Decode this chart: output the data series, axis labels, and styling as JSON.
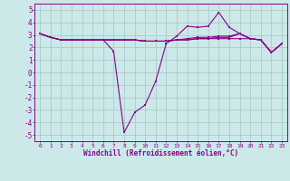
{
  "xlabel": "Windchill (Refroidissement éolien,°C)",
  "background_color": "#cce8e8",
  "grid_color": "#aacccc",
  "line_color": "#880088",
  "xlim": [
    -0.5,
    23.5
  ],
  "ylim": [
    -5.5,
    5.5
  ],
  "yticks": [
    -5,
    -4,
    -3,
    -2,
    -1,
    0,
    1,
    2,
    3,
    4,
    5
  ],
  "xticks": [
    0,
    1,
    2,
    3,
    4,
    5,
    6,
    7,
    8,
    9,
    10,
    11,
    12,
    13,
    14,
    15,
    16,
    17,
    18,
    19,
    20,
    21,
    22,
    23
  ],
  "series1": [
    [
      0,
      3.1
    ],
    [
      1,
      2.8
    ],
    [
      2,
      2.6
    ],
    [
      3,
      2.6
    ],
    [
      4,
      2.6
    ],
    [
      5,
      2.6
    ],
    [
      6,
      2.6
    ],
    [
      7,
      1.7
    ],
    [
      8,
      -4.8
    ],
    [
      9,
      -3.2
    ],
    [
      10,
      -2.6
    ],
    [
      11,
      -0.7
    ],
    [
      12,
      2.3
    ],
    [
      13,
      2.9
    ],
    [
      14,
      3.7
    ],
    [
      15,
      3.6
    ],
    [
      16,
      3.7
    ],
    [
      17,
      4.8
    ],
    [
      18,
      3.6
    ],
    [
      19,
      3.1
    ],
    [
      20,
      2.7
    ],
    [
      21,
      2.6
    ],
    [
      22,
      1.6
    ],
    [
      23,
      2.3
    ]
  ],
  "series2": [
    [
      0,
      3.1
    ],
    [
      1,
      2.8
    ],
    [
      2,
      2.6
    ],
    [
      3,
      2.6
    ],
    [
      4,
      2.6
    ],
    [
      5,
      2.6
    ],
    [
      6,
      2.6
    ],
    [
      7,
      2.6
    ],
    [
      8,
      2.6
    ],
    [
      9,
      2.6
    ],
    [
      10,
      2.5
    ],
    [
      11,
      2.5
    ],
    [
      12,
      2.5
    ],
    [
      13,
      2.6
    ],
    [
      14,
      2.6
    ],
    [
      15,
      2.7
    ],
    [
      16,
      2.7
    ],
    [
      17,
      2.7
    ],
    [
      18,
      2.7
    ],
    [
      19,
      2.7
    ],
    [
      20,
      2.7
    ],
    [
      21,
      2.6
    ],
    [
      22,
      1.6
    ],
    [
      23,
      2.3
    ]
  ],
  "series3": [
    [
      0,
      3.1
    ],
    [
      1,
      2.8
    ],
    [
      2,
      2.6
    ],
    [
      3,
      2.6
    ],
    [
      4,
      2.6
    ],
    [
      5,
      2.6
    ],
    [
      6,
      2.6
    ],
    [
      7,
      2.6
    ],
    [
      8,
      2.6
    ],
    [
      9,
      2.6
    ],
    [
      10,
      2.5
    ],
    [
      11,
      2.5
    ],
    [
      12,
      2.5
    ],
    [
      13,
      2.6
    ],
    [
      14,
      2.6
    ],
    [
      15,
      2.7
    ],
    [
      16,
      2.7
    ],
    [
      17,
      2.8
    ],
    [
      18,
      2.8
    ],
    [
      19,
      3.1
    ],
    [
      20,
      2.7
    ],
    [
      21,
      2.6
    ],
    [
      22,
      1.6
    ],
    [
      23,
      2.3
    ]
  ],
  "series4": [
    [
      0,
      3.1
    ],
    [
      1,
      2.8
    ],
    [
      2,
      2.6
    ],
    [
      3,
      2.6
    ],
    [
      4,
      2.6
    ],
    [
      5,
      2.6
    ],
    [
      6,
      2.6
    ],
    [
      7,
      2.6
    ],
    [
      8,
      2.6
    ],
    [
      9,
      2.6
    ],
    [
      10,
      2.5
    ],
    [
      11,
      2.5
    ],
    [
      12,
      2.5
    ],
    [
      13,
      2.6
    ],
    [
      14,
      2.7
    ],
    [
      15,
      2.8
    ],
    [
      16,
      2.8
    ],
    [
      17,
      2.9
    ],
    [
      18,
      2.9
    ],
    [
      19,
      3.1
    ],
    [
      20,
      2.7
    ],
    [
      21,
      2.6
    ],
    [
      22,
      1.6
    ],
    [
      23,
      2.3
    ]
  ]
}
